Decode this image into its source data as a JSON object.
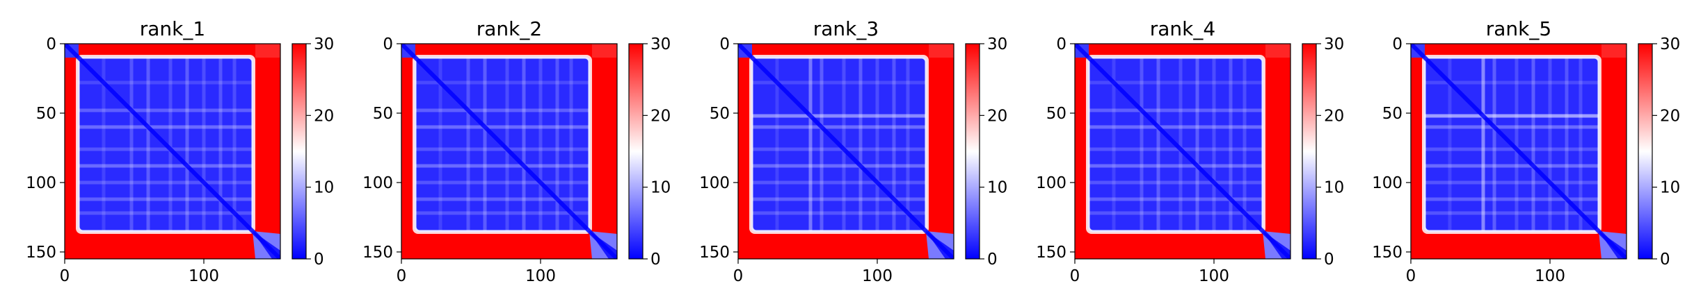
{
  "chart_data": [
    {
      "type": "heatmap",
      "title": "rank_1",
      "xlim": [
        0,
        155
      ],
      "ylim": [
        155,
        0
      ],
      "x_ticks": [
        0,
        100
      ],
      "y_ticks": [
        0,
        50,
        100,
        150
      ],
      "colorbar": {
        "min": 0,
        "max": 30,
        "ticks": [
          0,
          10,
          20,
          30
        ]
      },
      "colormap": [
        "#0000ff",
        "#ffffff",
        "#ff0000"
      ],
      "domain": {
        "start": 10,
        "end": 135
      },
      "stripes": [
        28,
        48,
        60,
        76,
        88,
        100,
        112,
        122
      ],
      "stripe_alpha": [
        0.15,
        0.25,
        0.3,
        0.2,
        0.3,
        0.2,
        0.25,
        0.2
      ],
      "tail_diagonal": true
    },
    {
      "type": "heatmap",
      "title": "rank_2",
      "xlim": [
        0,
        155
      ],
      "ylim": [
        155,
        0
      ],
      "x_ticks": [
        0,
        100
      ],
      "y_ticks": [
        0,
        50,
        100,
        150
      ],
      "colorbar": {
        "min": 0,
        "max": 30,
        "ticks": [
          0,
          10,
          20,
          30
        ]
      },
      "colormap": [
        "#0000ff",
        "#ffffff",
        "#ff0000"
      ],
      "domain": {
        "start": 10,
        "end": 135
      },
      "stripes": [
        28,
        48,
        60,
        76,
        88,
        100,
        112,
        122
      ],
      "stripe_alpha": [
        0.15,
        0.25,
        0.3,
        0.2,
        0.3,
        0.2,
        0.25,
        0.2
      ],
      "tail_diagonal": true
    },
    {
      "type": "heatmap",
      "title": "rank_3",
      "xlim": [
        0,
        155
      ],
      "ylim": [
        155,
        0
      ],
      "x_ticks": [
        0,
        100
      ],
      "y_ticks": [
        0,
        50,
        100,
        150
      ],
      "colorbar": {
        "min": 0,
        "max": 30,
        "ticks": [
          0,
          10,
          20,
          30
        ]
      },
      "colormap": [
        "#0000ff",
        "#ffffff",
        "#ff0000"
      ],
      "domain": {
        "start": 10,
        "end": 135
      },
      "stripes": [
        28,
        52,
        60,
        76,
        88,
        100,
        112,
        122
      ],
      "stripe_alpha": [
        0.15,
        0.45,
        0.3,
        0.2,
        0.3,
        0.2,
        0.25,
        0.2
      ],
      "tail_diagonal": true
    },
    {
      "type": "heatmap",
      "title": "rank_4",
      "xlim": [
        0,
        155
      ],
      "ylim": [
        155,
        0
      ],
      "x_ticks": [
        0,
        100
      ],
      "y_ticks": [
        0,
        50,
        100,
        150
      ],
      "colorbar": {
        "min": 0,
        "max": 30,
        "ticks": [
          0,
          10,
          20,
          30
        ]
      },
      "colormap": [
        "#0000ff",
        "#ffffff",
        "#ff0000"
      ],
      "domain": {
        "start": 10,
        "end": 135
      },
      "stripes": [
        28,
        48,
        60,
        76,
        88,
        100,
        112,
        122
      ],
      "stripe_alpha": [
        0.15,
        0.25,
        0.3,
        0.2,
        0.3,
        0.2,
        0.25,
        0.2
      ],
      "tail_diagonal": true
    },
    {
      "type": "heatmap",
      "title": "rank_5",
      "xlim": [
        0,
        155
      ],
      "ylim": [
        155,
        0
      ],
      "x_ticks": [
        0,
        100
      ],
      "y_ticks": [
        0,
        50,
        100,
        150
      ],
      "colorbar": {
        "min": 0,
        "max": 30,
        "ticks": [
          0,
          10,
          20,
          30
        ]
      },
      "colormap": [
        "#0000ff",
        "#ffffff",
        "#ff0000"
      ],
      "domain": {
        "start": 10,
        "end": 135
      },
      "stripes": [
        28,
        52,
        60,
        76,
        88,
        100,
        112,
        122
      ],
      "stripe_alpha": [
        0.15,
        0.55,
        0.3,
        0.2,
        0.3,
        0.2,
        0.25,
        0.2
      ],
      "tail_diagonal": true
    }
  ]
}
